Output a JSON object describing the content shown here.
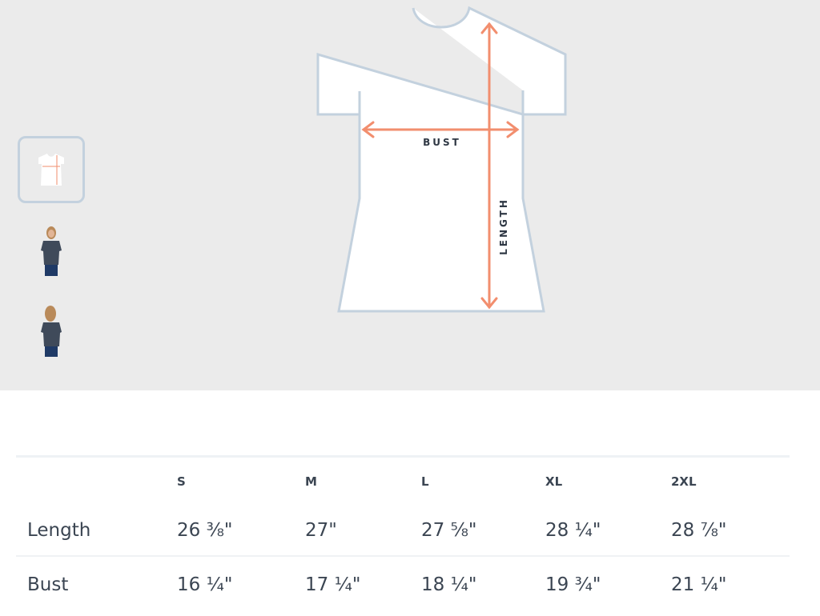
{
  "diagram": {
    "bust_label": "BUST",
    "length_label": "LENGTH",
    "arrow_color": "#f28e6e",
    "outline_color": "#c3d1de"
  },
  "thumbnails": [
    {
      "name": "size-diagram",
      "active": true
    },
    {
      "name": "model-front",
      "active": false
    },
    {
      "name": "model-back",
      "active": false
    }
  ],
  "size_table": {
    "columns": [
      "S",
      "M",
      "L",
      "XL",
      "2XL"
    ],
    "rows": [
      {
        "label": "Length",
        "values": [
          "26 ⅜\"",
          "27\"",
          "27 ⅝\"",
          "28 ¼\"",
          "28 ⅞\""
        ]
      },
      {
        "label": "Bust",
        "values": [
          "16 ¼\"",
          "17 ¼\"",
          "18 ¼\"",
          "19 ¾\"",
          "21 ¼\""
        ]
      }
    ]
  }
}
